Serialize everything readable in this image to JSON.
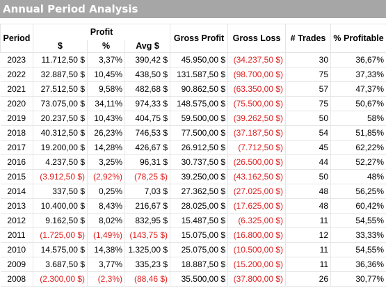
{
  "title": "Annual Period Analysis",
  "headers": {
    "period": "Period",
    "profit": "Profit",
    "profit_dollar": "$",
    "profit_pct": "%",
    "avg": "Avg $",
    "gross_profit": "Gross Profit",
    "gross_loss": "Gross Loss",
    "trades": "# Trades",
    "pct_profitable": "% Profitable"
  },
  "colors": {
    "title_bg": "#a6a6a6",
    "negative": "#e02020"
  },
  "rows": [
    {
      "period": "2023",
      "profit": "11.712,50 $",
      "pct": "3,37%",
      "avg": "390,42 $",
      "gross_profit": "45.950,00 $",
      "gross_loss": "(34.237,50 $)",
      "trades": "30",
      "pct_profitable": "36,67%",
      "neg": false
    },
    {
      "period": "2022",
      "profit": "32.887,50 $",
      "pct": "10,45%",
      "avg": "438,50 $",
      "gross_profit": "131.587,50 $",
      "gross_loss": "(98.700,00 $)",
      "trades": "75",
      "pct_profitable": "37,33%",
      "neg": false
    },
    {
      "period": "2021",
      "profit": "27.512,50 $",
      "pct": "9,58%",
      "avg": "482,68 $",
      "gross_profit": "90.862,50 $",
      "gross_loss": "(63.350,00 $)",
      "trades": "57",
      "pct_profitable": "47,37%",
      "neg": false
    },
    {
      "period": "2020",
      "profit": "73.075,00 $",
      "pct": "34,11%",
      "avg": "974,33 $",
      "gross_profit": "148.575,00 $",
      "gross_loss": "(75.500,00 $)",
      "trades": "75",
      "pct_profitable": "50,67%",
      "neg": false
    },
    {
      "period": "2019",
      "profit": "20.237,50 $",
      "pct": "10,43%",
      "avg": "404,75 $",
      "gross_profit": "59.500,00 $",
      "gross_loss": "(39.262,50 $)",
      "trades": "50",
      "pct_profitable": "58%",
      "neg": false
    },
    {
      "period": "2018",
      "profit": "40.312,50 $",
      "pct": "26,23%",
      "avg": "746,53 $",
      "gross_profit": "77.500,00 $",
      "gross_loss": "(37.187,50 $)",
      "trades": "54",
      "pct_profitable": "51,85%",
      "neg": false
    },
    {
      "period": "2017",
      "profit": "19.200,00 $",
      "pct": "14,28%",
      "avg": "426,67 $",
      "gross_profit": "26.912,50 $",
      "gross_loss": "(7.712,50 $)",
      "trades": "45",
      "pct_profitable": "62,22%",
      "neg": false
    },
    {
      "period": "2016",
      "profit": "4.237,50 $",
      "pct": "3,25%",
      "avg": "96,31 $",
      "gross_profit": "30.737,50 $",
      "gross_loss": "(26.500,00 $)",
      "trades": "44",
      "pct_profitable": "52,27%",
      "neg": false
    },
    {
      "period": "2015",
      "profit": "(3.912,50 $)",
      "pct": "(2,92%)",
      "avg": "(78,25 $)",
      "gross_profit": "39.250,00 $",
      "gross_loss": "(43.162,50 $)",
      "trades": "50",
      "pct_profitable": "48%",
      "neg": true
    },
    {
      "period": "2014",
      "profit": "337,50 $",
      "pct": "0,25%",
      "avg": "7,03 $",
      "gross_profit": "27.362,50 $",
      "gross_loss": "(27.025,00 $)",
      "trades": "48",
      "pct_profitable": "56,25%",
      "neg": false
    },
    {
      "period": "2013",
      "profit": "10.400,00 $",
      "pct": "8,43%",
      "avg": "216,67 $",
      "gross_profit": "28.025,00 $",
      "gross_loss": "(17.625,00 $)",
      "trades": "48",
      "pct_profitable": "60,42%",
      "neg": false
    },
    {
      "period": "2012",
      "profit": "9.162,50 $",
      "pct": "8,02%",
      "avg": "832,95 $",
      "gross_profit": "15.487,50 $",
      "gross_loss": "(6.325,00 $)",
      "trades": "11",
      "pct_profitable": "54,55%",
      "neg": false
    },
    {
      "period": "2011",
      "profit": "(1.725,00 $)",
      "pct": "(1,49%)",
      "avg": "(143,75 $)",
      "gross_profit": "15.075,00 $",
      "gross_loss": "(16.800,00 $)",
      "trades": "12",
      "pct_profitable": "33,33%",
      "neg": true
    },
    {
      "period": "2010",
      "profit": "14.575,00 $",
      "pct": "14,38%",
      "avg": "1.325,00 $",
      "gross_profit": "25.075,00 $",
      "gross_loss": "(10.500,00 $)",
      "trades": "11",
      "pct_profitable": "54,55%",
      "neg": false
    },
    {
      "period": "2009",
      "profit": "3.687,50 $",
      "pct": "3,77%",
      "avg": "335,23 $",
      "gross_profit": "18.887,50 $",
      "gross_loss": "(15.200,00 $)",
      "trades": "11",
      "pct_profitable": "36,36%",
      "neg": false
    },
    {
      "period": "2008",
      "profit": "(2.300,00 $)",
      "pct": "(2,3%)",
      "avg": "(88,46 $)",
      "gross_profit": "35.500,00 $",
      "gross_loss": "(37.800,00 $)",
      "trades": "26",
      "pct_profitable": "30,77%",
      "neg": true
    }
  ]
}
